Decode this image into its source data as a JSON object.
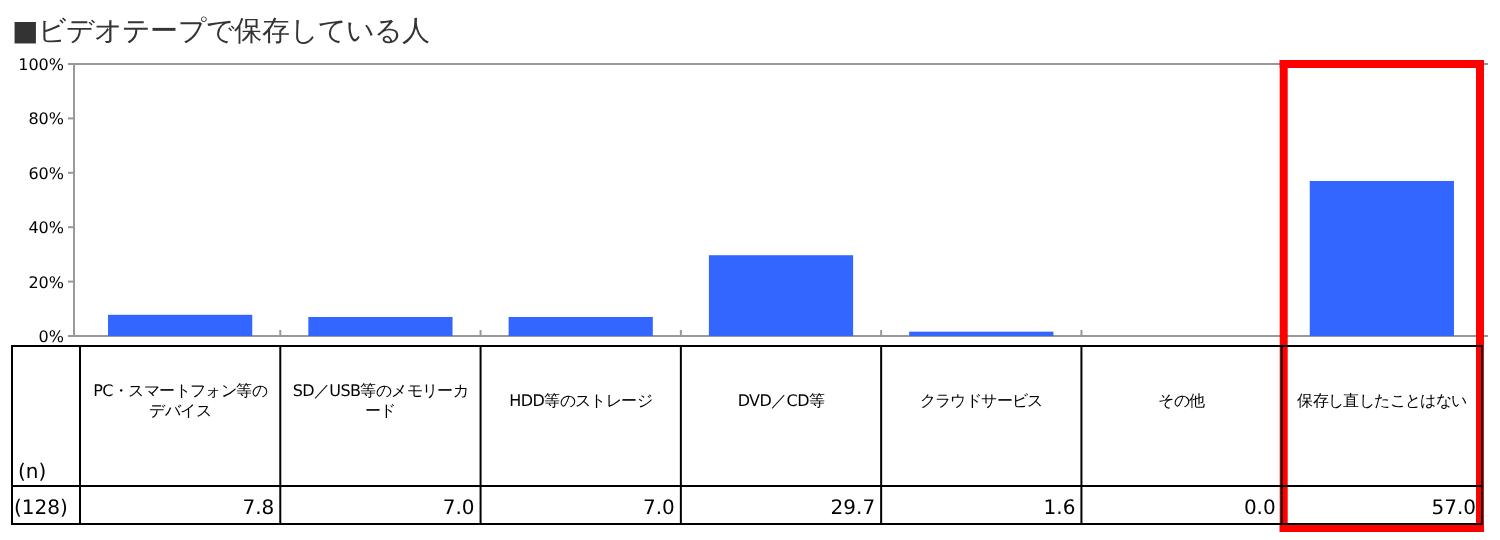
{
  "chart_data": {
    "type": "bar",
    "title": "■ビデオテープで保存している人",
    "categories": [
      "PC・スマートフォン等のデバイス",
      "SD／USB等のメモリーカード",
      "HDD等のストレージ",
      "DVD／CD等",
      "クラウドサービス",
      "その他",
      "保存し直したことはない"
    ],
    "values": [
      7.8,
      7.0,
      7.0,
      29.7,
      1.6,
      0.0,
      57.0
    ],
    "value_labels": [
      "7.8",
      "7.0",
      "7.0",
      "29.7",
      "1.6",
      "0.0",
      "57.0"
    ],
    "color": "#3366ff",
    "ylim": [
      0,
      100
    ],
    "yticks": [
      {
        "value": 0,
        "label": "0%"
      },
      {
        "value": 20,
        "label": "20%"
      },
      {
        "value": 40,
        "label": "40%"
      },
      {
        "value": 60,
        "label": "60%"
      },
      {
        "value": 80,
        "label": "80%"
      },
      {
        "value": 100,
        "label": "100%"
      }
    ],
    "grid": false,
    "annotations": [
      "(n)",
      "(128)"
    ]
  }
}
